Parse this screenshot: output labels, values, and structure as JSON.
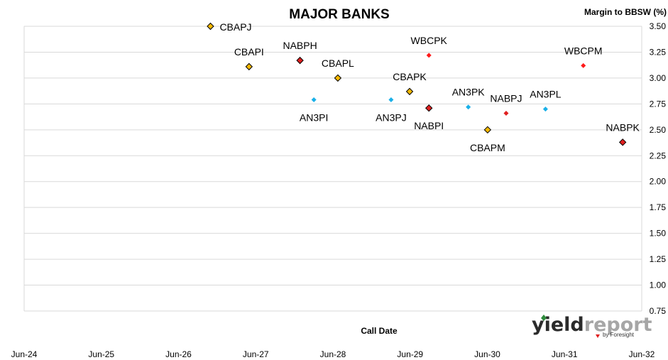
{
  "chart_data": {
    "type": "scatter",
    "title": "MAJOR BANKS",
    "ylabel": "Margin to BBSW (%)",
    "xlabel": "Call Date",
    "ylim": [
      0.75,
      3.5
    ],
    "yticks": [
      "0.75",
      "1.00",
      "1.25",
      "1.50",
      "1.75",
      "2.00",
      "2.25",
      "2.50",
      "2.75",
      "3.00",
      "3.25",
      "3.50"
    ],
    "xlim": [
      2024.4167,
      2032.4167
    ],
    "xticks": [
      {
        "x": 2024.4167,
        "label": "Jun-24"
      },
      {
        "x": 2025.4167,
        "label": "Jun-25"
      },
      {
        "x": 2026.4167,
        "label": "Jun-26"
      },
      {
        "x": 2027.4167,
        "label": "Jun-27"
      },
      {
        "x": 2028.4167,
        "label": "Jun-28"
      },
      {
        "x": 2029.4167,
        "label": "Jun-29"
      },
      {
        "x": 2030.4167,
        "label": "Jun-30"
      },
      {
        "x": 2031.4167,
        "label": "Jun-31"
      },
      {
        "x": 2032.4167,
        "label": "Jun-32"
      }
    ],
    "grid": true,
    "series_colors": {
      "CBA": "#f5b800",
      "NAB": "#e02020",
      "ANZ": "#1ab0e8",
      "WBC": "#ff1a1a"
    },
    "points": [
      {
        "label": "CBAPJ",
        "group": "CBA",
        "style": "outlined",
        "x": 2026.83,
        "y": 3.5,
        "label_pos": "right"
      },
      {
        "label": "CBAPI",
        "group": "CBA",
        "style": "outlined",
        "x": 2027.33,
        "y": 3.11,
        "label_pos": "above"
      },
      {
        "label": "NABPH",
        "group": "NAB",
        "style": "outlined",
        "x": 2027.99,
        "y": 3.17,
        "label_pos": "above"
      },
      {
        "label": "CBAPL",
        "group": "CBA",
        "style": "outlined",
        "x": 2028.48,
        "y": 3.0,
        "label_pos": "above"
      },
      {
        "label": "AN3PI",
        "group": "ANZ",
        "style": "plain",
        "x": 2028.17,
        "y": 2.79,
        "label_pos": "below"
      },
      {
        "label": "WBCPK",
        "group": "WBC",
        "style": "plain",
        "x": 2029.66,
        "y": 3.22,
        "label_pos": "above"
      },
      {
        "label": "CBAPK",
        "group": "CBA",
        "style": "outlined",
        "x": 2029.41,
        "y": 2.87,
        "label_pos": "above"
      },
      {
        "label": "AN3PJ",
        "group": "ANZ",
        "style": "plain",
        "x": 2029.17,
        "y": 2.79,
        "label_pos": "below"
      },
      {
        "label": "NABPI",
        "group": "NAB",
        "style": "outlined",
        "x": 2029.66,
        "y": 2.71,
        "label_pos": "below"
      },
      {
        "label": "AN3PK",
        "group": "ANZ",
        "style": "plain",
        "x": 2030.17,
        "y": 2.72,
        "label_pos": "above"
      },
      {
        "label": "NABPJ",
        "group": "NAB",
        "style": "plain",
        "x": 2030.66,
        "y": 2.66,
        "label_pos": "above"
      },
      {
        "label": "AN3PL",
        "group": "ANZ",
        "style": "plain",
        "x": 2031.17,
        "y": 2.7,
        "label_pos": "above"
      },
      {
        "label": "CBAPM",
        "group": "CBA",
        "style": "outlined",
        "x": 2030.42,
        "y": 2.5,
        "label_pos": "below"
      },
      {
        "label": "WBCPM",
        "group": "WBC",
        "style": "plain",
        "x": 2031.66,
        "y": 3.12,
        "label_pos": "above"
      },
      {
        "label": "NABPK",
        "group": "NAB",
        "style": "outlined",
        "x": 2032.17,
        "y": 2.38,
        "label_pos": "above"
      }
    ]
  },
  "logo": {
    "brand_prefix": "yield",
    "brand_suffix": "report",
    "byline": "by Foresight",
    "prefix_color": "#2b2b2b",
    "suffix_color": "#a6a6a6",
    "accent_color": "#e02020"
  }
}
